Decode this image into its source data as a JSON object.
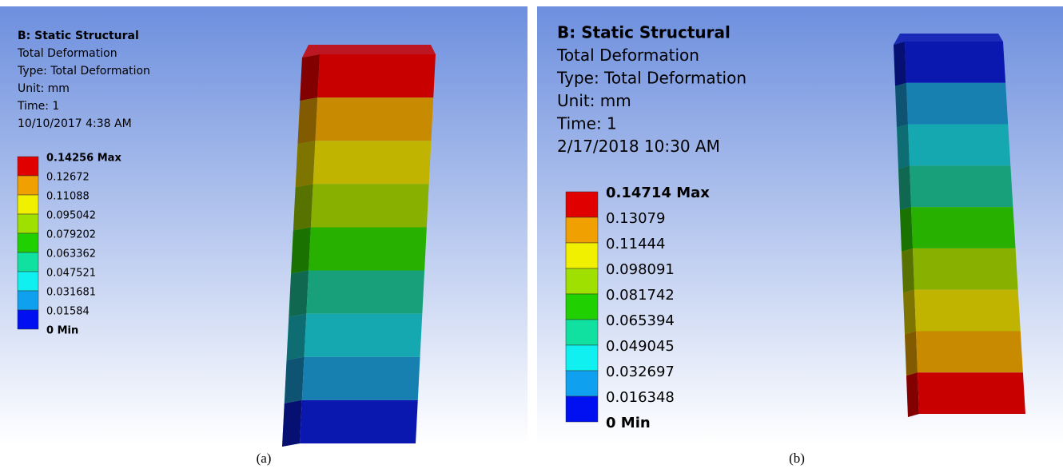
{
  "panels": [
    {
      "title": "B: Static Structural",
      "lines": [
        "Total Deformation",
        "Type: Total Deformation",
        "Unit: mm",
        "Time: 1",
        "10/10/2017 4:38 AM"
      ],
      "legend": [
        "0.14256 Max",
        "0.12672",
        "0.11088",
        "0.095042",
        "0.079202",
        "0.063362",
        "0.047521",
        "0.031681",
        "0.01584",
        "0 Min"
      ],
      "caption": "(a)"
    },
    {
      "title": "B: Static Structural",
      "lines": [
        "Total Deformation",
        "Type: Total Deformation",
        "Unit: mm",
        "Time: 1",
        "2/17/2018 10:30 AM"
      ],
      "legend": [
        "0.14714 Max",
        "0.13079",
        "0.11444",
        "0.098091",
        "0.081742",
        "0.065394",
        "0.049045",
        "0.032697",
        "0.016348",
        "0 Min"
      ],
      "caption": "(b)"
    }
  ]
}
